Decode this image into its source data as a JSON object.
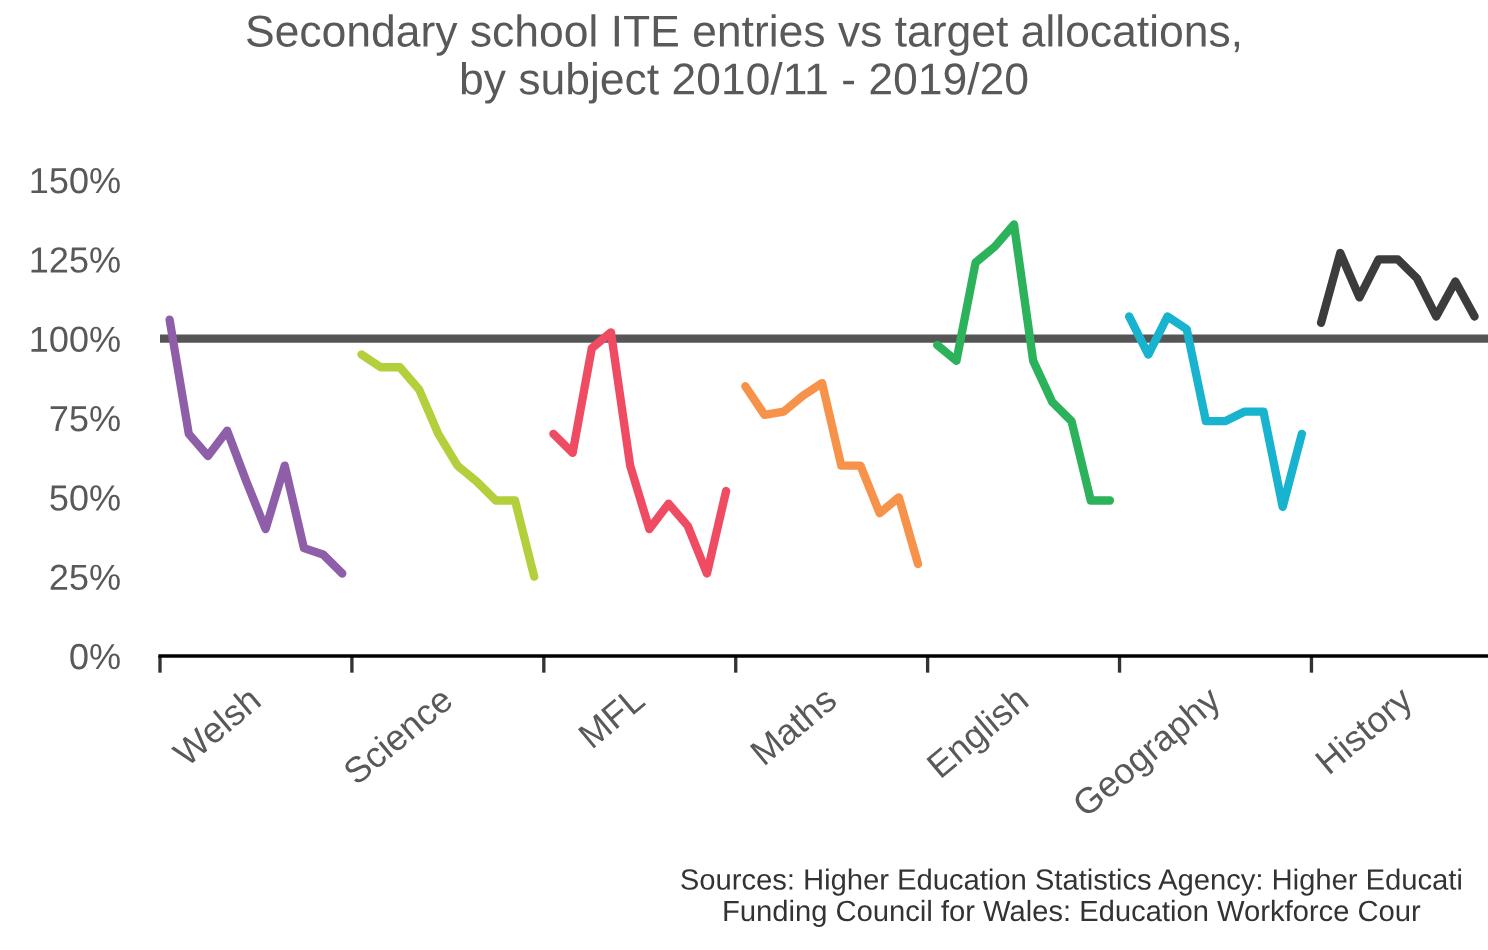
{
  "chart_data": {
    "type": "line",
    "title": "Secondary school ITE entries vs target allocations,\nby subject 2010/11 - 2019/20",
    "categories": [
      null,
      null,
      null,
      null,
      "Welsh",
      null,
      null,
      null,
      null,
      null,
      null,
      null,
      null,
      null,
      "Science",
      null,
      null,
      null,
      null,
      null,
      null,
      null,
      null,
      null,
      "MFL",
      null,
      null,
      null,
      null,
      null,
      null,
      null,
      null,
      null,
      "Maths",
      null,
      null,
      null,
      null,
      null,
      null,
      null,
      null,
      null,
      "English",
      null,
      null,
      null,
      null,
      null,
      null,
      null,
      null,
      null,
      "Geography",
      null,
      null,
      null,
      null,
      null,
      null,
      null,
      null,
      null,
      "History",
      null,
      null,
      null,
      null
    ],
    "series": [
      {
        "color": "#8e5ea8",
        "values": [
          106,
          70,
          63,
          71,
          55,
          40,
          60,
          34,
          32,
          26,
          null,
          null,
          null,
          null,
          null,
          null,
          null,
          null,
          null,
          null,
          null,
          null,
          null,
          null,
          null,
          null,
          null,
          null,
          null,
          null,
          null,
          null,
          null,
          null,
          null,
          null,
          null,
          null,
          null,
          null,
          null,
          null,
          null,
          null,
          null,
          null,
          null,
          null,
          null,
          null,
          null,
          null,
          null,
          null,
          null,
          null,
          null,
          null,
          null,
          null,
          null,
          null,
          null,
          null,
          null,
          null,
          null,
          null,
          null
        ]
      },
      {
        "color": "#b4cf3c",
        "values": [
          null,
          null,
          null,
          null,
          null,
          null,
          null,
          null,
          null,
          null,
          95,
          91,
          91,
          84,
          70,
          60,
          55,
          49,
          49,
          25,
          null,
          null,
          null,
          null,
          null,
          null,
          null,
          null,
          null,
          null,
          null,
          null,
          null,
          null,
          null,
          null,
          null,
          null,
          null,
          null,
          null,
          null,
          null,
          null,
          null,
          null,
          null,
          null,
          null,
          null,
          null,
          null,
          null,
          null,
          null,
          null,
          null,
          null,
          null,
          null,
          null,
          null,
          null,
          null,
          null,
          null,
          null,
          null,
          null
        ]
      },
      {
        "color": "#ef4b63",
        "values": [
          null,
          null,
          null,
          null,
          null,
          null,
          null,
          null,
          null,
          null,
          null,
          null,
          null,
          null,
          null,
          null,
          null,
          null,
          null,
          null,
          70,
          64,
          97,
          102,
          60,
          40,
          48,
          41,
          26,
          52,
          null,
          null,
          null,
          null,
          null,
          null,
          null,
          null,
          null,
          null,
          null,
          null,
          null,
          null,
          null,
          null,
          null,
          null,
          null,
          null,
          null,
          null,
          null,
          null,
          null,
          null,
          null,
          null,
          null,
          null,
          null,
          null,
          null,
          null,
          null,
          null,
          null,
          null,
          null
        ]
      },
      {
        "color": "#f7924a",
        "values": [
          null,
          null,
          null,
          null,
          null,
          null,
          null,
          null,
          null,
          null,
          null,
          null,
          null,
          null,
          null,
          null,
          null,
          null,
          null,
          null,
          null,
          null,
          null,
          null,
          null,
          null,
          null,
          null,
          null,
          null,
          85,
          76,
          77,
          82,
          86,
          60,
          60,
          45,
          50,
          29,
          null,
          null,
          null,
          null,
          null,
          null,
          null,
          null,
          null,
          null,
          null,
          null,
          null,
          null,
          null,
          null,
          null,
          null,
          null,
          null,
          null,
          null,
          null,
          null,
          null,
          null,
          null,
          null,
          null
        ]
      },
      {
        "color": "#2cb25b",
        "values": [
          null,
          null,
          null,
          null,
          null,
          null,
          null,
          null,
          null,
          null,
          null,
          null,
          null,
          null,
          null,
          null,
          null,
          null,
          null,
          null,
          null,
          null,
          null,
          null,
          null,
          null,
          null,
          null,
          null,
          null,
          null,
          null,
          null,
          null,
          null,
          null,
          null,
          null,
          null,
          null,
          98,
          93,
          124,
          129,
          136,
          93,
          80,
          74,
          49,
          49,
          null,
          null,
          null,
          null,
          null,
          null,
          null,
          null,
          null,
          null,
          null,
          null,
          null,
          null,
          null,
          null,
          null,
          null,
          null
        ]
      },
      {
        "color": "#18b4cf",
        "values": [
          null,
          null,
          null,
          null,
          null,
          null,
          null,
          null,
          null,
          null,
          null,
          null,
          null,
          null,
          null,
          null,
          null,
          null,
          null,
          null,
          null,
          null,
          null,
          null,
          null,
          null,
          null,
          null,
          null,
          null,
          null,
          null,
          null,
          null,
          null,
          null,
          null,
          null,
          null,
          null,
          null,
          null,
          null,
          null,
          null,
          null,
          null,
          null,
          null,
          null,
          107,
          95,
          107,
          103,
          74,
          74,
          77,
          77,
          47,
          70,
          null,
          null,
          null,
          null,
          null,
          null,
          null,
          null,
          null
        ]
      },
      {
        "color": "#3c3c3c",
        "values": [
          null,
          null,
          null,
          null,
          null,
          null,
          null,
          null,
          null,
          null,
          null,
          null,
          null,
          null,
          null,
          null,
          null,
          null,
          null,
          null,
          null,
          null,
          null,
          null,
          null,
          null,
          null,
          null,
          null,
          null,
          null,
          null,
          null,
          null,
          null,
          null,
          null,
          null,
          null,
          null,
          null,
          null,
          null,
          null,
          null,
          null,
          null,
          null,
          null,
          null,
          null,
          null,
          null,
          null,
          null,
          null,
          null,
          null,
          null,
          null,
          105,
          127,
          113,
          125,
          125,
          119,
          107,
          118,
          107
        ]
      }
    ],
    "ylim": [
      0,
      150
    ],
    "yticks": [
      {
        "value": 0,
        "label": "0%"
      },
      {
        "value": 25,
        "label": "25%"
      },
      {
        "value": 50,
        "label": "50%"
      },
      {
        "value": 75,
        "label": "75%"
      },
      {
        "value": 100,
        "label": "100%"
      },
      {
        "value": 125,
        "label": "125%"
      },
      {
        "value": 150,
        "label": "150%"
      }
    ],
    "ref_lines": [
      {
        "axis": "y",
        "value": 100,
        "color": "#555555"
      }
    ],
    "grid": false,
    "marker": "none",
    "line_style": "solid",
    "annotations": [
      "Sources: Higher Education Statistics Agency: Higher Educati\nFunding Council for Wales: Education Workforce Cour"
    ]
  }
}
